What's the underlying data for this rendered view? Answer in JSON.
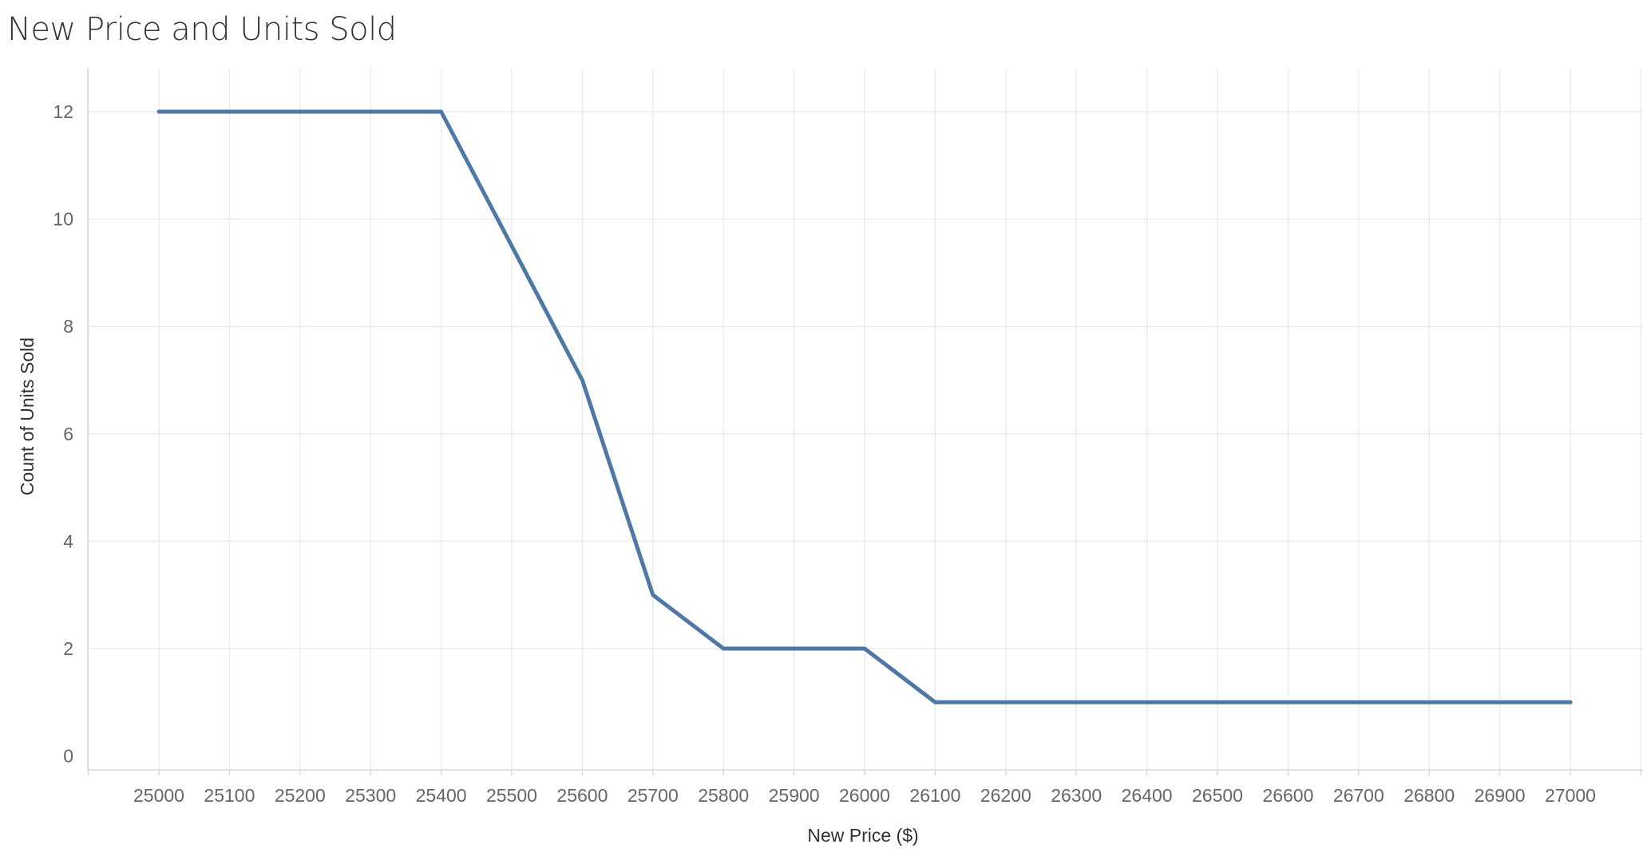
{
  "title": "New Price and Units Sold",
  "chart_data": {
    "type": "line",
    "title": "New Price and Units Sold",
    "xlabel": "New Price ($)",
    "ylabel": "Count of Units Sold",
    "x_ticks": [
      25000,
      25100,
      25200,
      25300,
      25400,
      25500,
      25600,
      25700,
      25800,
      25900,
      26000,
      26100,
      26200,
      26300,
      26400,
      26500,
      26600,
      26700,
      26800,
      26900,
      27000
    ],
    "y_ticks": [
      0,
      2,
      4,
      6,
      8,
      10,
      12
    ],
    "xlim": [
      24900,
      27100
    ],
    "ylim": [
      -0.3,
      13
    ],
    "grid": true,
    "series": [
      {
        "color": "#4e79a7",
        "x": [
          25000,
          25100,
          25200,
          25300,
          25400,
          25500,
          25600,
          25700,
          25800,
          25900,
          26000,
          26100,
          26200,
          26300,
          26400,
          26500,
          26600,
          26700,
          26800,
          26900,
          27000
        ],
        "y": [
          12,
          12,
          12,
          12,
          12,
          9.5,
          7,
          3,
          2,
          2,
          2,
          1,
          1,
          1,
          1,
          1,
          1,
          1,
          1,
          1,
          1
        ]
      }
    ]
  }
}
